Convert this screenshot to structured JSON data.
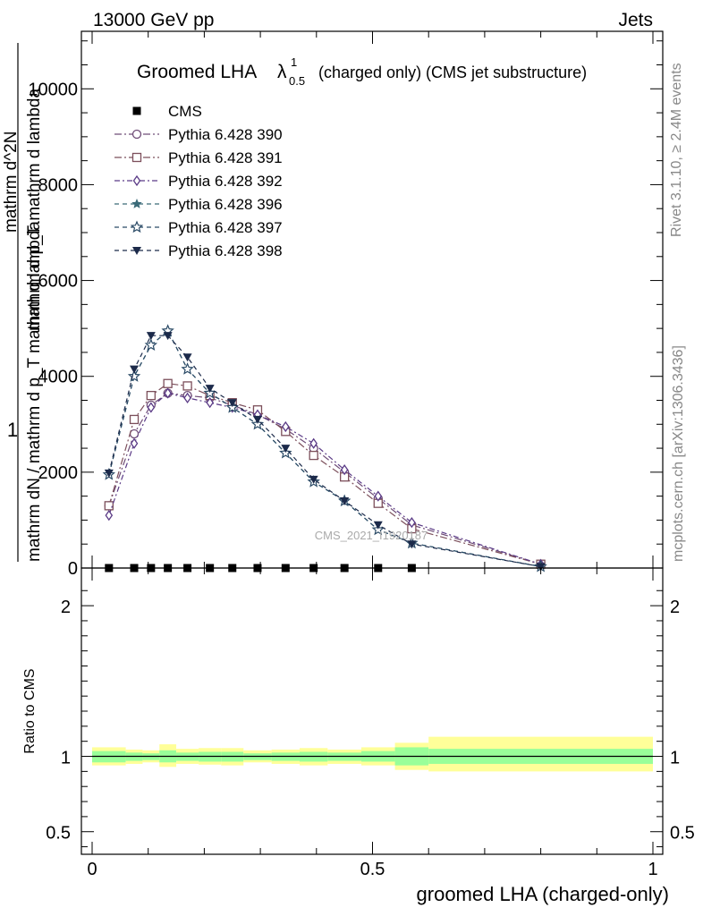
{
  "header": {
    "left": "13000 GeV pp",
    "right": "Jets"
  },
  "side_labels": {
    "rivet": "Rivet 3.1.10, ≥ 2.4M events",
    "mcplots": "mcplots.cern.ch [arXiv:1306.3436]"
  },
  "watermark": "CMS_2021_I1920187",
  "chart_data": [
    {
      "type": "line",
      "title_main": "Groomed LHA",
      "title_lambda": "λ",
      "title_sup": "1",
      "title_sub": "0.5",
      "title_rest": "(charged only) (CMS jet substructure)",
      "ylabel_numerator": "1",
      "ylabel_denominator": "mathrm dN / mathrm d p_T mathrm d lambda",
      "ylabel_numerator_part": "mathrm d^2N",
      "ylabel_denominator_part": "mathrm d p_T mathrm d lambda",
      "xlim": [
        0,
        1
      ],
      "ylim": [
        0,
        11200
      ],
      "yticks": [
        {
          "value": 0,
          "label": "0"
        },
        {
          "value": 2000,
          "label": "2000"
        },
        {
          "value": 4000,
          "label": "4000"
        },
        {
          "value": 6000,
          "label": "6000"
        },
        {
          "value": 8000,
          "label": "8000"
        },
        {
          "value": 10000,
          "label": "10000"
        }
      ],
      "x": [
        0.03,
        0.075,
        0.105,
        0.135,
        0.17,
        0.21,
        0.25,
        0.295,
        0.345,
        0.395,
        0.45,
        0.51,
        0.57,
        0.8
      ],
      "series": [
        {
          "name": "CMS",
          "color": "#000000",
          "marker": "square-filled",
          "dash": "none",
          "values": [
            0,
            0,
            0,
            0,
            0,
            0,
            0,
            0,
            0,
            0,
            0,
            0,
            0,
            null
          ]
        },
        {
          "name": "Pythia 6.428 390",
          "color": "#6f4d77",
          "marker": "circle-open",
          "dash": "8,3,2,3",
          "values": [
            1300,
            2800,
            3400,
            3650,
            3600,
            3550,
            3400,
            3200,
            2900,
            2500,
            2000,
            1450,
            900,
            80
          ]
        },
        {
          "name": "Pythia 6.428 391",
          "color": "#7c4f5b",
          "marker": "square-open",
          "dash": "8,3,2,3",
          "values": [
            1300,
            3100,
            3600,
            3850,
            3800,
            3600,
            3450,
            3300,
            2850,
            2350,
            1900,
            1350,
            820,
            80
          ]
        },
        {
          "name": "Pythia 6.428 392",
          "color": "#5a3a86",
          "marker": "diamond-open",
          "dash": "6,3,2,3",
          "values": [
            1100,
            2600,
            3350,
            3650,
            3550,
            3450,
            3350,
            3200,
            2950,
            2600,
            2050,
            1500,
            950,
            80
          ]
        },
        {
          "name": "Pythia 6.428 396",
          "color": "#3a6a78",
          "marker": "star-filled",
          "dash": "5,4",
          "values": [
            1950,
            4000,
            4650,
            4950,
            4150,
            3650,
            3350,
            3000,
            2400,
            1800,
            1400,
            800,
            520,
            30
          ]
        },
        {
          "name": "Pythia 6.428 397",
          "color": "#2a4a66",
          "marker": "star-open",
          "dash": "5,4",
          "values": [
            1950,
            4000,
            4650,
            4950,
            4150,
            3650,
            3350,
            3000,
            2400,
            1800,
            1400,
            800,
            520,
            30
          ]
        },
        {
          "name": "Pythia 6.428 398",
          "color": "#1c2a4a",
          "marker": "triangle-down-filled",
          "dash": "5,4",
          "values": [
            1980,
            4150,
            4850,
            4850,
            4400,
            3750,
            3450,
            3100,
            2500,
            1850,
            1400,
            900,
            500,
            30
          ]
        }
      ]
    },
    {
      "type": "area",
      "ylabel": "Ratio to CMS",
      "xlabel": "groomed LHA (charged-only)",
      "xlim": [
        0,
        1
      ],
      "ylim": [
        0.35,
        2.25
      ],
      "xticks": [
        {
          "value": 0,
          "label": "0"
        },
        {
          "value": 0.5,
          "label": "0.5"
        },
        {
          "value": 1,
          "label": "1"
        }
      ],
      "yticks": [
        {
          "value": 0.5,
          "label": "0.5"
        },
        {
          "value": 1,
          "label": "1"
        },
        {
          "value": 2,
          "label": "2"
        }
      ],
      "bins": [
        {
          "lo": 0.0,
          "hi": 0.06,
          "inner": [
            0.96,
            1.035
          ],
          "outer": [
            0.94,
            1.06
          ]
        },
        {
          "lo": 0.06,
          "hi": 0.09,
          "inner": [
            0.97,
            1.025
          ],
          "outer": [
            0.95,
            1.045
          ]
        },
        {
          "lo": 0.09,
          "hi": 0.12,
          "inner": [
            0.975,
            1.02
          ],
          "outer": [
            0.96,
            1.04
          ]
        },
        {
          "lo": 0.12,
          "hi": 0.15,
          "inner": [
            0.96,
            1.04
          ],
          "outer": [
            0.93,
            1.08
          ]
        },
        {
          "lo": 0.15,
          "hi": 0.19,
          "inner": [
            0.97,
            1.025
          ],
          "outer": [
            0.95,
            1.05
          ]
        },
        {
          "lo": 0.19,
          "hi": 0.23,
          "inner": [
            0.965,
            1.03
          ],
          "outer": [
            0.945,
            1.055
          ]
        },
        {
          "lo": 0.23,
          "hi": 0.27,
          "inner": [
            0.965,
            1.03
          ],
          "outer": [
            0.94,
            1.055
          ]
        },
        {
          "lo": 0.27,
          "hi": 0.32,
          "inner": [
            0.975,
            1.02
          ],
          "outer": [
            0.96,
            1.04
          ]
        },
        {
          "lo": 0.32,
          "hi": 0.37,
          "inner": [
            0.97,
            1.025
          ],
          "outer": [
            0.95,
            1.045
          ]
        },
        {
          "lo": 0.37,
          "hi": 0.42,
          "inner": [
            0.965,
            1.03
          ],
          "outer": [
            0.94,
            1.055
          ]
        },
        {
          "lo": 0.42,
          "hi": 0.48,
          "inner": [
            0.97,
            1.025
          ],
          "outer": [
            0.95,
            1.045
          ]
        },
        {
          "lo": 0.48,
          "hi": 0.54,
          "inner": [
            0.965,
            1.035
          ],
          "outer": [
            0.94,
            1.06
          ]
        },
        {
          "lo": 0.54,
          "hi": 0.6,
          "inner": [
            0.94,
            1.06
          ],
          "outer": [
            0.91,
            1.09
          ]
        },
        {
          "lo": 0.6,
          "hi": 1.0,
          "inner": [
            0.95,
            1.05
          ],
          "outer": [
            0.9,
            1.13
          ]
        }
      ]
    }
  ]
}
